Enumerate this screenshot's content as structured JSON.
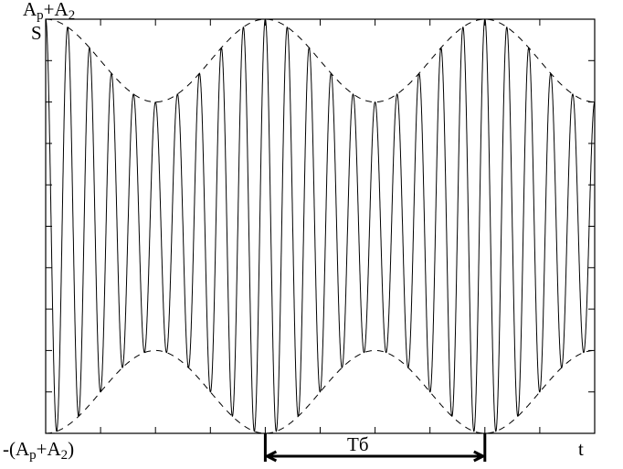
{
  "labels": {
    "top_A": "A",
    "top_sub1": "p",
    "top_plus": "+A",
    "top_sub2": "2",
    "s_axis": "S",
    "bottom_open": "-(A",
    "bottom_sub1": "p",
    "bottom_plus": "+A",
    "bottom_sub2": "2",
    "bottom_close": ")",
    "t_axis": "t",
    "beat_period": "Tб"
  },
  "chart_data": {
    "type": "line",
    "description_series": [
      {
        "kind": "signal",
        "style": "solid",
        "color": "#000000"
      },
      {
        "kind": "envelope",
        "style": "dashed",
        "color": "#000000"
      }
    ],
    "amplitude_max": 1,
    "envelope_min_ratio": 0.6,
    "carrier_cycles_per_beat": 10,
    "t_range_beats": [
      0,
      2.5
    ],
    "y_range": [
      -1,
      1
    ],
    "beat_marker_from": 1,
    "beat_marker_to": 2,
    "x_ticks": 10,
    "y_ticks": 10
  }
}
